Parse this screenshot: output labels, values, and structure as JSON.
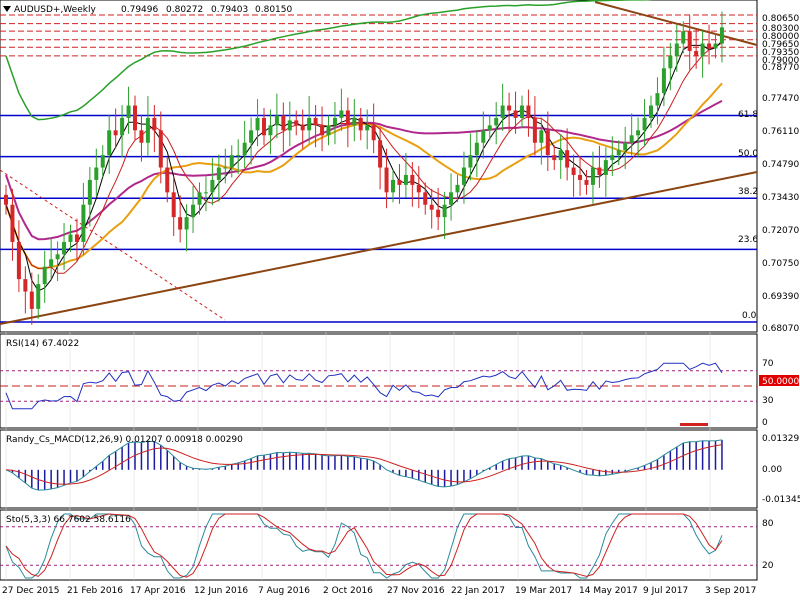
{
  "header": {
    "symbol": "AUDUSD+,Weekly",
    "open": "0.79496",
    "high": "0.80272",
    "low": "0.79403",
    "close": "0.80150"
  },
  "colors": {
    "bull": "#2ca02c",
    "bear": "#d62728",
    "hline": "#0000cc",
    "trend": "#8b4513",
    "ma_purple": "#b0288c",
    "ma_orange": "#e8a010",
    "ma_green": "#2aa02a",
    "ma_red": "#c81e1e",
    "ma_black": "#000000",
    "res_dash": "#d02020",
    "macd_hist": "#1a1aa0",
    "macd_line": "#2a8a9a",
    "signal": "#d02020",
    "rsi": "#2030c0",
    "sto_main": "#2a8a9a",
    "sto_signal": "#d02020",
    "level_line": "#a0207a"
  },
  "price_axis": [
    "0.80650",
    "0.80300",
    "0.80000",
    "0.79650",
    "0.79350",
    "0.79000",
    "0.78770",
    "0.77470",
    "0.76110",
    "0.74790",
    "0.73430",
    "0.72070",
    "0.70750",
    "0.69390",
    "0.68070"
  ],
  "fib_labels": [
    "61.8",
    "50.0",
    "38.2",
    "23.6",
    "0.0"
  ],
  "date_axis": [
    "27 Dec 2015",
    "21 Feb 2016",
    "17 Apr 2016",
    "12 Jun 2016",
    "7 Aug 2016",
    "2 Oct 2016",
    "27 Nov 2016",
    "22 Jan 2017",
    "19 Mar 2017",
    "14 May 2017",
    "9 Jul 2017",
    "3 Sep 2017"
  ],
  "rsi": {
    "label": "RSI(14) 67.4022",
    "levels": [
      "70",
      "50.0000",
      "30",
      "0"
    ]
  },
  "macd": {
    "label": "Randy_Cs_MACD(12,26,9) 0.01207 0.00918 0.00290",
    "levels": [
      "0.01329",
      "0.00",
      "-0.01345"
    ]
  },
  "sto": {
    "label": "Sto(5,3,3) 66.7602 58.6116",
    "levels": [
      "80",
      "20"
    ]
  },
  "chart_data": {
    "type": "candlestick",
    "title": "AUDUSD+,Weekly",
    "ohlc_last": {
      "open": 0.79496,
      "high": 0.80272,
      "low": 0.79403,
      "close": 0.8015
    },
    "ylim": [
      0.6807,
      0.8065
    ],
    "close_series": [
      0.73,
      0.715,
      0.7,
      0.695,
      0.688,
      0.698,
      0.705,
      0.708,
      0.71,
      0.715,
      0.718,
      0.715,
      0.73,
      0.74,
      0.745,
      0.75,
      0.76,
      0.758,
      0.765,
      0.77,
      0.76,
      0.755,
      0.765,
      0.76,
      0.745,
      0.735,
      0.725,
      0.72,
      0.725,
      0.73,
      0.735,
      0.735,
      0.74,
      0.745,
      0.745,
      0.75,
      0.75,
      0.755,
      0.76,
      0.765,
      0.758,
      0.762,
      0.766,
      0.76,
      0.764,
      0.762,
      0.76,
      0.765,
      0.762,
      0.758,
      0.762,
      0.765,
      0.768,
      0.762,
      0.765,
      0.76,
      0.762,
      0.756,
      0.745,
      0.735,
      0.74,
      0.738,
      0.742,
      0.738,
      0.735,
      0.73,
      0.728,
      0.725,
      0.73,
      0.735,
      0.738,
      0.745,
      0.75,
      0.755,
      0.76,
      0.762,
      0.765,
      0.77,
      0.768,
      0.765,
      0.77,
      0.765,
      0.755,
      0.76,
      0.75,
      0.748,
      0.752,
      0.745,
      0.742,
      0.74,
      0.738,
      0.745,
      0.742,
      0.748,
      0.75,
      0.752,
      0.755,
      0.758,
      0.76,
      0.765,
      0.77,
      0.775,
      0.785,
      0.79,
      0.795,
      0.8,
      0.792,
      0.79,
      0.795,
      0.793,
      0.795,
      0.8015
    ],
    "horizontal_levels": [
      {
        "label": "61.8",
        "value": 0.766
      },
      {
        "label": "50.0",
        "value": 0.7494
      },
      {
        "label": "38.2",
        "value": 0.7326
      },
      {
        "label": "23.6",
        "value": 0.712
      },
      {
        "label": "0.0",
        "value": 0.6827
      }
    ],
    "resistance_levels": [
      0.8065,
      0.803,
      0.8,
      0.7965,
      0.7935,
      0.79
    ],
    "rsi": {
      "name": "RSI(14)",
      "last": 67.4022,
      "ylim": [
        0,
        100
      ],
      "levels": [
        70,
        50,
        30
      ]
    },
    "macd": {
      "name": "Randy_Cs_MACD(12,26,9)",
      "last": [
        0.01207,
        0.00918,
        0.0029
      ],
      "ylim": [
        -0.01345,
        0.01329
      ]
    },
    "stochastic": {
      "name": "Sto(5,3,3)",
      "last": [
        66.7602,
        58.6116
      ],
      "ylim": [
        0,
        100
      ],
      "levels": [
        80,
        20
      ]
    }
  }
}
